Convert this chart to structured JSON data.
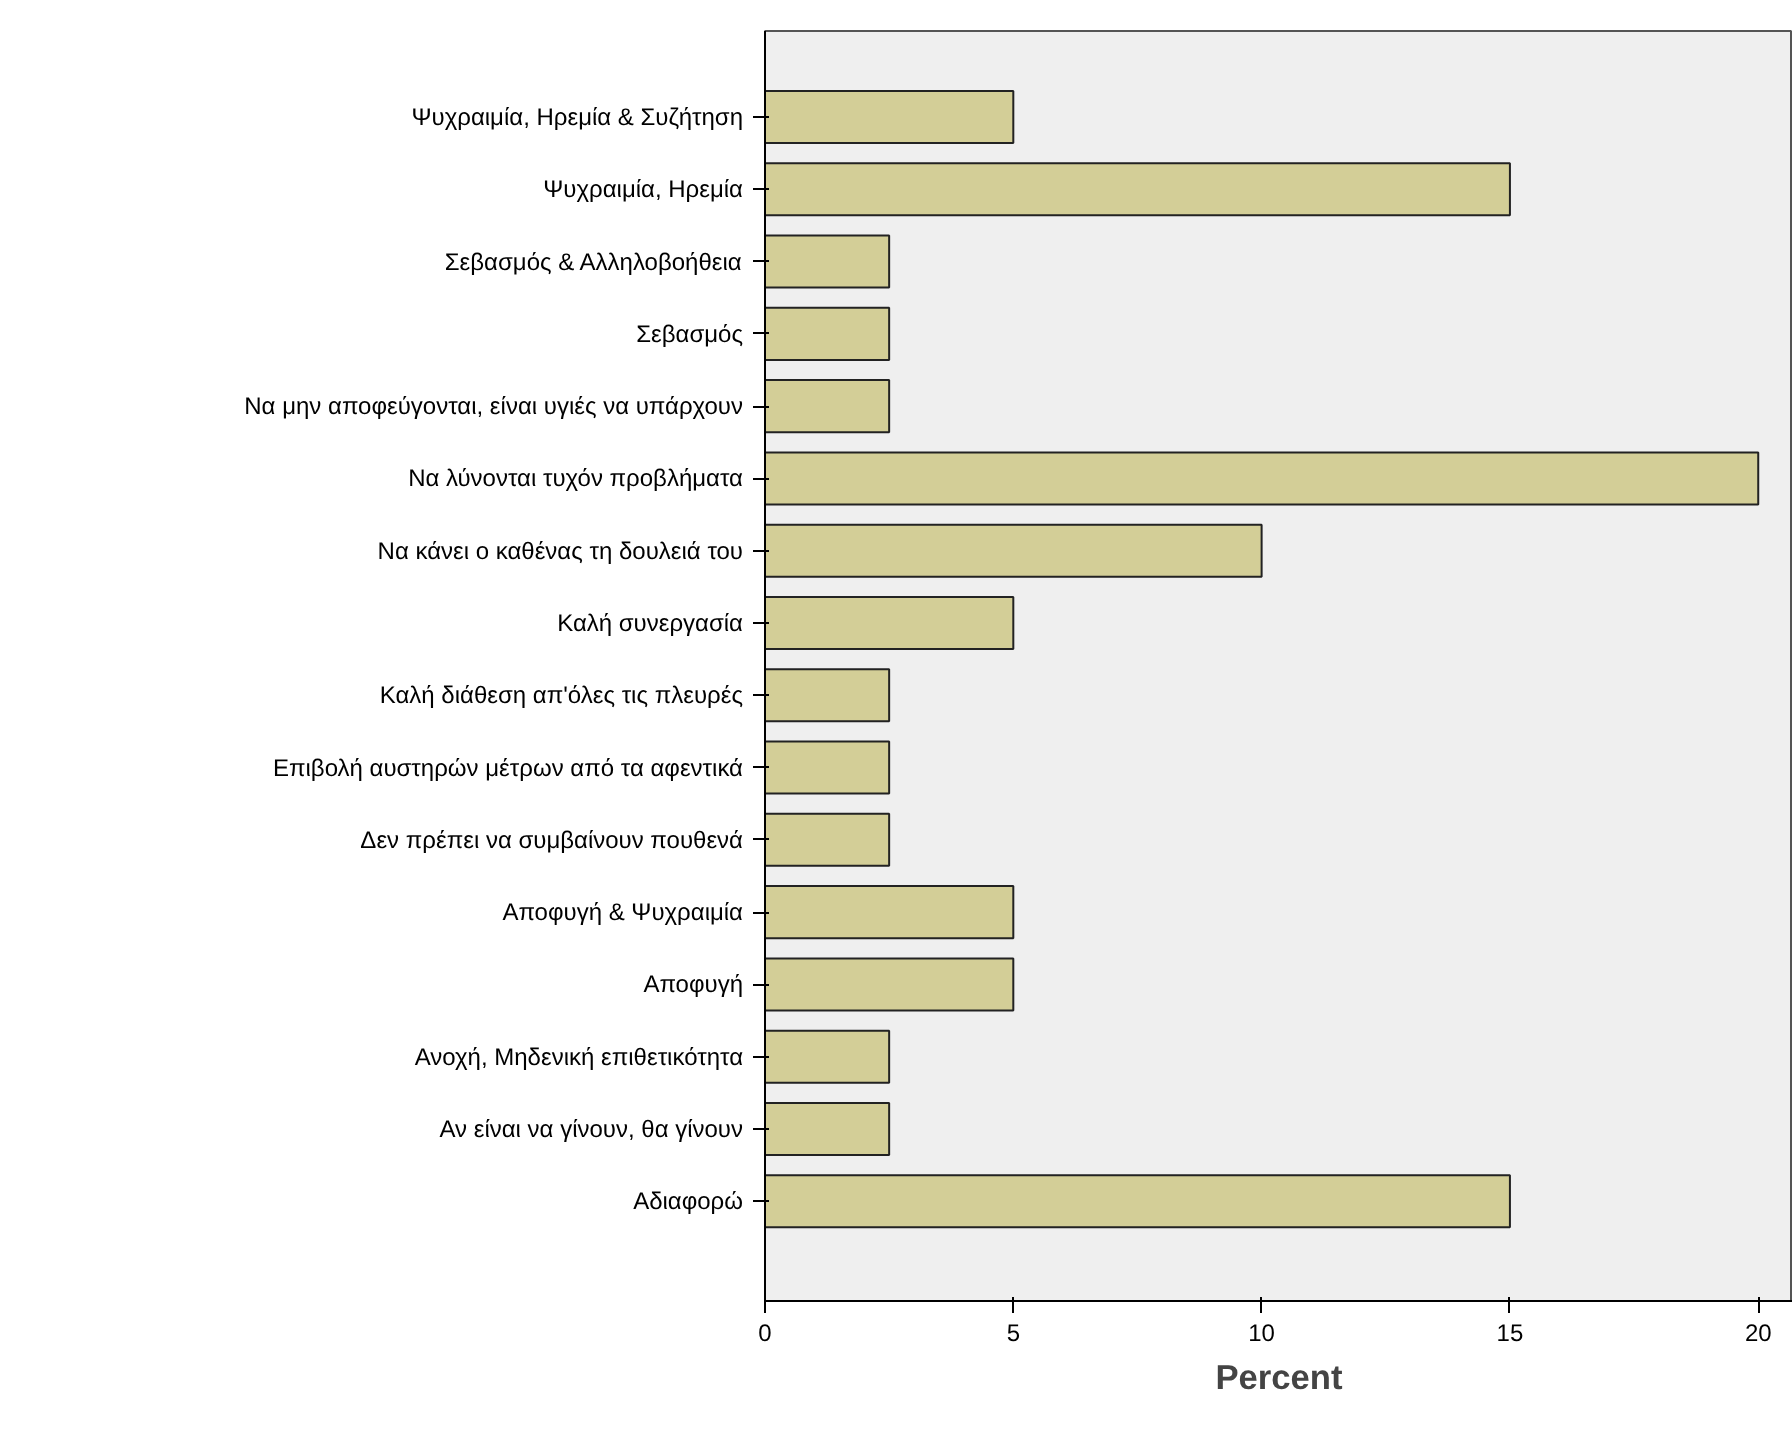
{
  "chart_data": {
    "type": "bar",
    "orientation": "horizontal",
    "xlabel": "Percent",
    "categories": [
      "Ψυχραιμία, Ηρεμία & Συζήτηση",
      "Ψυχραιμία, Ηρεμία",
      "Σεβασμός & Αλληλοβοήθεια",
      "Σεβασμός",
      "Να μην αποφεύγονται, είναι υγιές να υπάρχουν",
      "Να λύνονται τυχόν προβλήματα",
      "Να κάνει ο καθένας τη δουλειά του",
      "Καλή συνεργασία",
      "Καλή διάθεση απ'όλες τις πλευρές",
      "Επιβολή αυστηρών μέτρων από τα αφεντικά",
      "Δεν πρέπει να συμβαίνουν πουθενά",
      "Αποφυγή & Ψυχραιμία",
      "Αποφυγή",
      "Ανοχή, Μηδενική επιθετικότητα",
      "Αν είναι να γίνουν, θα γίνουν",
      "Αδιαφορώ"
    ],
    "values": [
      5,
      15,
      2.5,
      2.5,
      2.5,
      20,
      10,
      5,
      2.5,
      2.5,
      2.5,
      5,
      5,
      2.5,
      2.5,
      15
    ],
    "color": "#d3ce97",
    "xlim": [
      0,
      20.7
    ],
    "xticks": [
      0,
      5,
      10,
      15,
      20
    ],
    "grid": false
  }
}
